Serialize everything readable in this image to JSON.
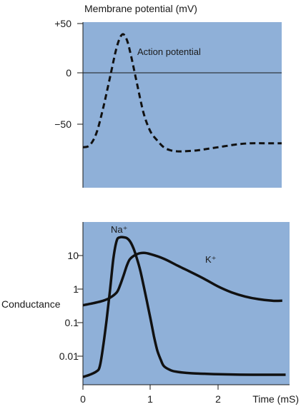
{
  "chart_data": [
    {
      "type": "line",
      "title": "Membrane potential (mV)",
      "ylabel": "Membrane potential (mV)",
      "xlabel": "",
      "yticks": [
        "+50",
        "0",
        "−50"
      ],
      "ylim": [
        -120,
        50
      ],
      "xlim": [
        0,
        2.95
      ],
      "reference_line_y": 0,
      "background": "#8fb0d8",
      "series": [
        {
          "name": "Action potential",
          "style": "dashed",
          "x": [
            0,
            0.1,
            0.2,
            0.3,
            0.4,
            0.5,
            0.58,
            0.65,
            0.72,
            0.8,
            0.9,
            1.0,
            1.1,
            1.2,
            1.3,
            1.4,
            1.5,
            1.7,
            1.9,
            2.1,
            2.3,
            2.5,
            2.7,
            2.95
          ],
          "y": [
            -74,
            -72,
            -60,
            -35,
            -5,
            25,
            38,
            33,
            15,
            -10,
            -40,
            -58,
            -67,
            -74,
            -77,
            -78,
            -78,
            -77,
            -75,
            -73,
            -71,
            -70,
            -70,
            -70
          ]
        }
      ]
    },
    {
      "type": "line",
      "title": "",
      "ylabel": "Conductance",
      "xlabel": "Time (mS)",
      "xticks": [
        "0",
        "1",
        "2"
      ],
      "yticks": [
        "10",
        "1",
        "0.1",
        "0.01"
      ],
      "yscale": "log",
      "ylim": [
        0.0007,
        70
      ],
      "xlim": [
        0,
        3.05
      ],
      "background": "#8fb0d8",
      "series": [
        {
          "name": "Na⁺",
          "x": [
            0,
            0.1,
            0.2,
            0.25,
            0.3,
            0.35,
            0.4,
            0.45,
            0.5,
            0.55,
            0.6,
            0.65,
            0.7,
            0.75,
            0.8,
            0.85,
            0.9,
            0.95,
            1.0,
            1.05,
            1.1,
            1.15,
            1.2,
            1.3,
            1.4,
            1.6,
            1.8,
            2.0,
            2.5,
            3.0
          ],
          "y": [
            0.0024,
            0.0028,
            0.0035,
            0.005,
            0.02,
            0.12,
            0.9,
            8,
            28,
            35,
            35,
            33,
            26,
            16,
            8,
            3.5,
            1.2,
            0.4,
            0.13,
            0.04,
            0.015,
            0.008,
            0.005,
            0.0038,
            0.0034,
            0.0031,
            0.003,
            0.0029,
            0.0028,
            0.0028
          ]
        },
        {
          "name": "K⁺",
          "x": [
            0,
            0.15,
            0.3,
            0.4,
            0.5,
            0.55,
            0.6,
            0.65,
            0.7,
            0.8,
            0.9,
            1.0,
            1.2,
            1.4,
            1.6,
            1.8,
            2.0,
            2.2,
            2.4,
            2.6,
            2.8,
            2.95
          ],
          "y": [
            0.33,
            0.38,
            0.45,
            0.55,
            0.8,
            1.3,
            2.5,
            5,
            8,
            11,
            12,
            11,
            8,
            5,
            3.2,
            2,
            1.2,
            0.8,
            0.6,
            0.5,
            0.45,
            0.45
          ]
        }
      ]
    }
  ]
}
